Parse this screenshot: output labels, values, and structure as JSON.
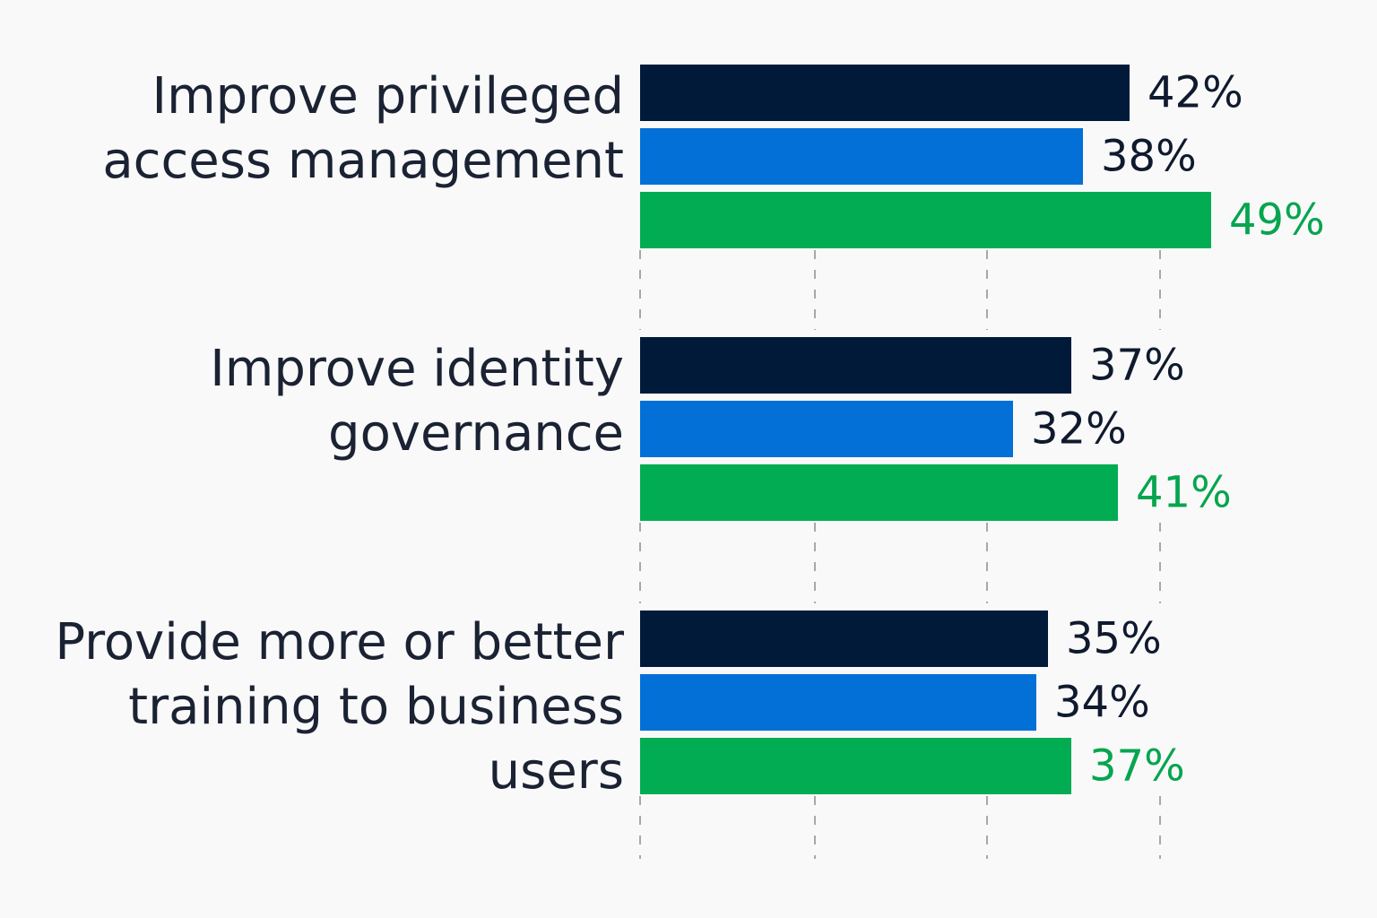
{
  "chart_data": {
    "type": "bar",
    "orientation": "horizontal",
    "categories": [
      [
        "Improve privileged",
        "access management"
      ],
      [
        "Improve identity",
        "governance"
      ],
      [
        "Provide more or better",
        "training to business",
        "users"
      ]
    ],
    "series": [
      {
        "color": "#011a3a",
        "label_color": "#101a2e",
        "values": [
          42,
          37,
          35
        ],
        "value_labels": [
          "42%",
          "37%",
          "35%"
        ]
      },
      {
        "color": "#0270d6",
        "label_color": "#101a2e",
        "values": [
          38,
          32,
          34
        ],
        "value_labels": [
          "38%",
          "32%",
          "34%"
        ]
      },
      {
        "color": "#01ac53",
        "label_color": "#07a54f",
        "values": [
          49,
          41,
          37
        ],
        "value_labels": [
          "49%",
          "41%",
          "37%"
        ]
      }
    ],
    "gridlines": "dashed-vertical",
    "legend": "none"
  }
}
